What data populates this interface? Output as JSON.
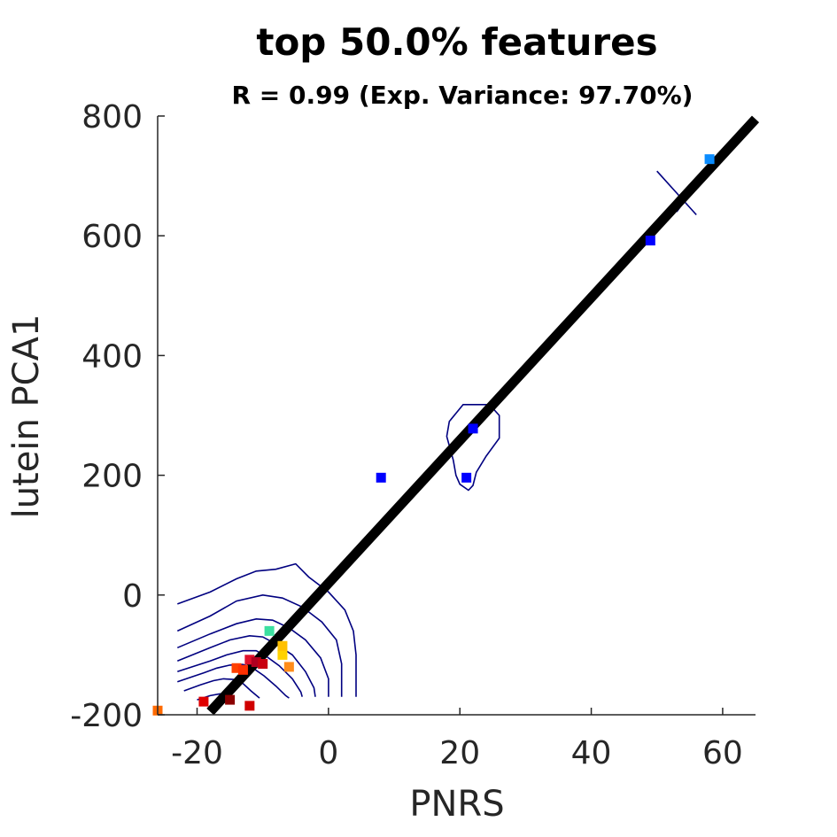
{
  "chart_data": {
    "type": "scatter",
    "title": "top 50.0% features",
    "subtitle": "R = 0.99 (Exp. Variance: 97.70%)",
    "xlabel": "PNRS",
    "ylabel": "lutein PCA1",
    "xlim": [
      -26,
      65
    ],
    "ylim": [
      -200,
      800
    ],
    "xticks": [
      -20,
      0,
      20,
      40,
      60
    ],
    "yticks": [
      -200,
      0,
      200,
      400,
      600,
      800
    ],
    "grid": false,
    "legend": "none",
    "colors": {
      "fit_line": "#000000",
      "contour": "#000080",
      "axis": "#262626"
    },
    "fit_line": {
      "x": [
        -18,
        65
      ],
      "y": [
        -195,
        795
      ]
    },
    "points": [
      {
        "x": 58,
        "y": 728,
        "color": "#0A8CFF"
      },
      {
        "x": 49,
        "y": 592,
        "color": "#0000FF"
      },
      {
        "x": 22,
        "y": 278,
        "color": "#0000FF"
      },
      {
        "x": 21,
        "y": 196,
        "color": "#0000FF"
      },
      {
        "x": 8,
        "y": 196,
        "color": "#0000FF"
      },
      {
        "x": -9,
        "y": -60,
        "color": "#3CE0A0"
      },
      {
        "x": -7,
        "y": -100,
        "color": "#FFD200"
      },
      {
        "x": -7,
        "y": -85,
        "color": "#FFC000"
      },
      {
        "x": -6,
        "y": -120,
        "color": "#FF8C1A"
      },
      {
        "x": -12,
        "y": -108,
        "color": "#E0102A"
      },
      {
        "x": -11,
        "y": -112,
        "color": "#B00020"
      },
      {
        "x": -10,
        "y": -115,
        "color": "#C80010"
      },
      {
        "x": -14,
        "y": -122,
        "color": "#FF4000"
      },
      {
        "x": -13,
        "y": -125,
        "color": "#FF3000"
      },
      {
        "x": -15,
        "y": -175,
        "color": "#8B0000"
      },
      {
        "x": -19,
        "y": -178,
        "color": "#E00000"
      },
      {
        "x": -12,
        "y": -185,
        "color": "#D00000"
      },
      {
        "x": -26,
        "y": -193,
        "color": "#FF6A00"
      }
    ],
    "contours": [
      {
        "name": "upper-right-cross-a",
        "x": [
          50,
          56
        ],
        "y": [
          708,
          635
        ]
      },
      {
        "name": "upper-right-cross-b",
        "x": [
          53,
          57
        ],
        "y": [
          640,
          700
        ]
      },
      {
        "name": "mid-blob",
        "closed": true,
        "x": [
          20.5,
          24.5,
          26,
          26,
          24,
          22.5,
          22,
          21.3,
          20,
          19.4,
          19,
          18,
          18.4,
          20.5
        ],
        "y": [
          318,
          318,
          300,
          262,
          232,
          205,
          183,
          175,
          185,
          200,
          225,
          265,
          290,
          318
        ]
      },
      {
        "x": [
          -23,
          -18,
          -14,
          -11,
          -8,
          -5,
          -3,
          0,
          2.5,
          3.8,
          4.2,
          4.2
        ],
        "y": [
          -15,
          5,
          27,
          40,
          43,
          52,
          30,
          5,
          -25,
          -60,
          -100,
          -170
        ]
      },
      {
        "x": [
          -23,
          -18,
          -14,
          -10,
          -7,
          -4,
          -1,
          1.2,
          2,
          2,
          2
        ],
        "y": [
          -60,
          -35,
          -10,
          0,
          -5,
          -20,
          -45,
          -75,
          -115,
          -150,
          -170
        ]
      },
      {
        "x": [
          -23,
          -18,
          -14,
          -11,
          -8.5,
          -6,
          -3.5,
          -1.2,
          0,
          0
        ],
        "y": [
          -88,
          -65,
          -48,
          -40,
          -42,
          -55,
          -75,
          -105,
          -140,
          -170
        ]
      },
      {
        "x": [
          -23,
          -18,
          -15,
          -12,
          -10,
          -8,
          -5.5,
          -3.5,
          -2.2,
          -2
        ],
        "y": [
          -110,
          -88,
          -75,
          -68,
          -70,
          -82,
          -100,
          -128,
          -155,
          -170
        ]
      },
      {
        "x": [
          -23,
          -18,
          -15.5,
          -13,
          -11,
          -9.5,
          -7.5,
          -5.5,
          -4.2,
          -4
        ],
        "y": [
          -128,
          -110,
          -100,
          -93,
          -93,
          -102,
          -118,
          -140,
          -162,
          -170
        ]
      },
      {
        "x": [
          -23,
          -19,
          -17,
          -15,
          -13,
          -11.5,
          -9.8,
          -8,
          -6.5,
          -6
        ],
        "y": [
          -145,
          -130,
          -122,
          -117,
          -116,
          -122,
          -135,
          -152,
          -168,
          -172
        ]
      },
      {
        "x": [
          -22,
          -19.5,
          -17.5,
          -16,
          -14.5,
          -13,
          -11.8,
          -10.5
        ],
        "y": [
          -160,
          -150,
          -143,
          -140,
          -141,
          -148,
          -160,
          -172
        ]
      },
      {
        "x": [
          -20,
          -18,
          -16.5,
          -15.5,
          -15
        ],
        "y": [
          -175,
          -168,
          -165,
          -168,
          -175
        ]
      }
    ]
  }
}
